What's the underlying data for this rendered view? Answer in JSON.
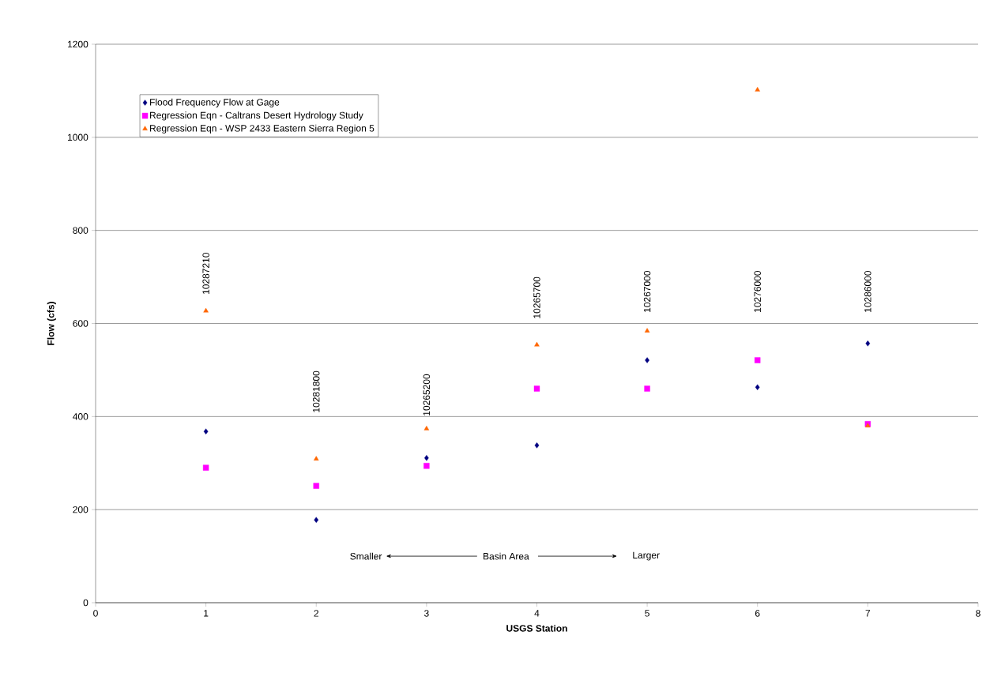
{
  "chart_data": {
    "type": "scatter",
    "xlabel": "USGS Station",
    "ylabel": "Flow (cfs)",
    "x": [
      1,
      2,
      3,
      4,
      5,
      6,
      7
    ],
    "series": [
      {
        "name": "Flood Frequency Flow at Gage",
        "color": "#000080",
        "marker": "diamond",
        "values": [
          368,
          178,
          311,
          338,
          521,
          463,
          557
        ]
      },
      {
        "name": "Regression Eqn - Caltrans Desert Hydrology Study",
        "color": "#ff00ff",
        "marker": "square",
        "values": [
          290,
          251,
          294,
          460,
          460,
          521,
          384
        ]
      },
      {
        "name": "Regression Eqn - WSP 2433 Eastern Sierra Region 5",
        "color": "#ff6600",
        "marker": "triangle",
        "values": [
          627,
          309,
          374,
          554,
          584,
          1102,
          380
        ]
      }
    ],
    "xlim": [
      0,
      8
    ],
    "xticks": [
      0,
      1,
      2,
      3,
      4,
      5,
      6,
      7,
      8
    ],
    "ylim": [
      0,
      1200
    ],
    "yticks": [
      0,
      200,
      400,
      600,
      800,
      1000,
      1200
    ],
    "grid": "y",
    "legend": "top left",
    "annotations": [
      "10287210",
      "10281800",
      "10265200",
      "10265700",
      "10267000",
      "10276000",
      "10286000",
      "Smaller",
      "Basin Area",
      "Larger"
    ]
  }
}
